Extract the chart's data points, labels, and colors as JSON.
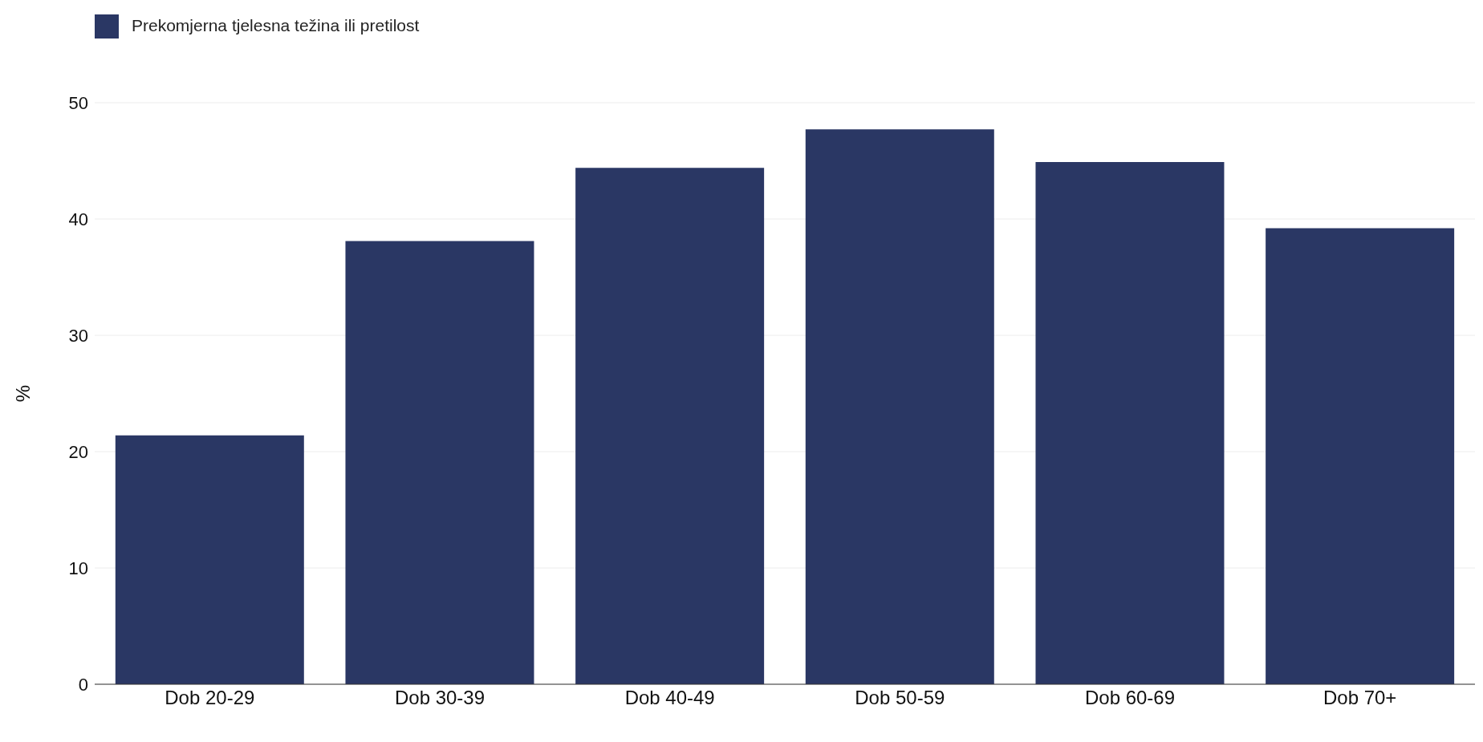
{
  "chart_data": {
    "type": "bar",
    "ylabel": "%",
    "categories": [
      "Dob 20-29",
      "Dob 30-39",
      "Dob 40-49",
      "Dob 50-59",
      "Dob 60-69",
      "Dob 70+"
    ],
    "series": [
      {
        "name": "Prekomjerna tjelesna težina ili pretilost",
        "color": "#2a3764",
        "values": [
          21.4,
          38.1,
          44.4,
          47.7,
          44.9,
          39.2
        ]
      }
    ],
    "ylim": [
      0,
      50
    ],
    "yticks": [
      0,
      10,
      20,
      30,
      40,
      50
    ],
    "grid": "y",
    "legend": "top left"
  }
}
